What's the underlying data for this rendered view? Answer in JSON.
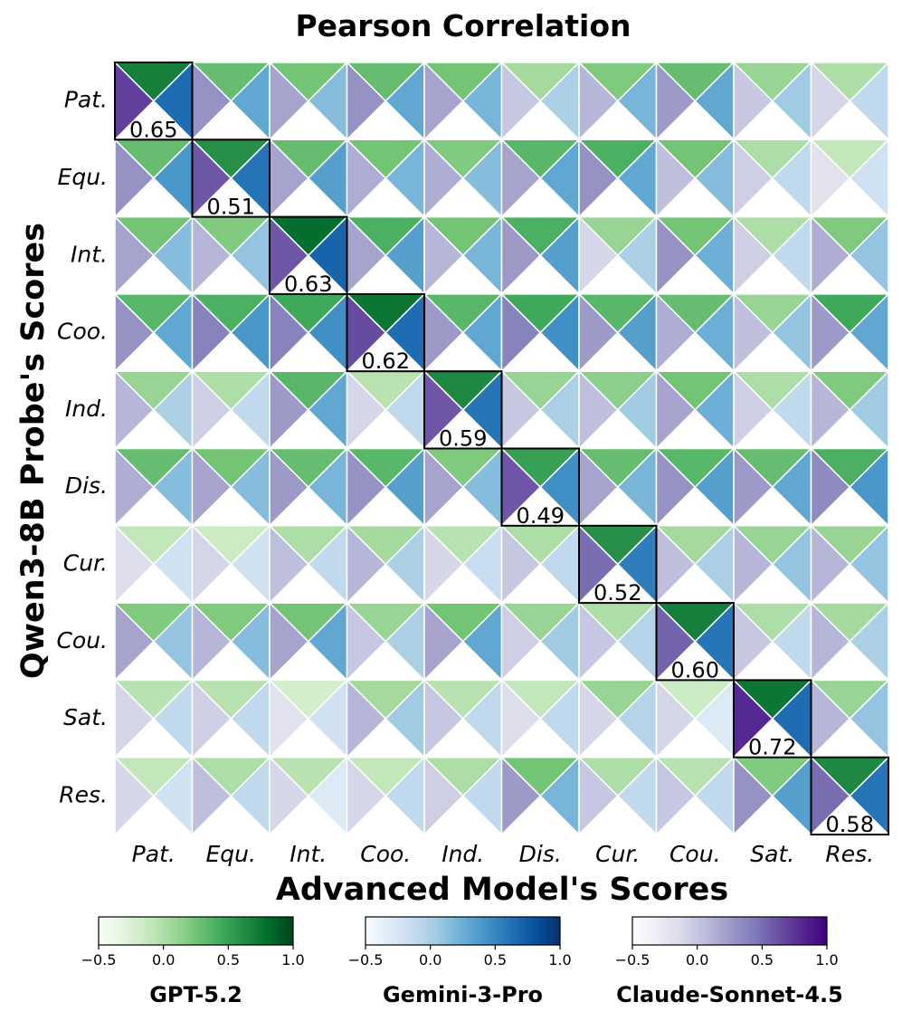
{
  "chart_data": {
    "type": "heatmap",
    "title": "Pearson Correlation",
    "xlabel": "Advanced Model's Scores",
    "ylabel": "Qwen3-8B Probe's Scores",
    "rows": [
      "Pat.",
      "Equ.",
      "Int.",
      "Coo.",
      "Ind.",
      "Dis.",
      "Cur.",
      "Cou.",
      "Sat.",
      "Res."
    ],
    "cols": [
      "Pat.",
      "Equ.",
      "Int.",
      "Coo.",
      "Ind.",
      "Dis.",
      "Cur.",
      "Cou.",
      "Sat.",
      "Res."
    ],
    "diagonal_labels": [
      "0.65",
      "0.51",
      "0.63",
      "0.62",
      "0.59",
      "0.49",
      "0.52",
      "0.60",
      "0.72",
      "0.58"
    ],
    "vmin": -0.5,
    "vmax": 1.0,
    "series": [
      {
        "name": "GPT-5.2",
        "colormap": "Greens",
        "position": "top",
        "values": [
          [
            0.7,
            0.3,
            0.25,
            0.3,
            0.25,
            0.05,
            0.2,
            0.3,
            0.1,
            0.0
          ],
          [
            0.3,
            0.6,
            0.3,
            0.25,
            0.2,
            0.35,
            0.4,
            0.25,
            0.0,
            -0.1
          ],
          [
            0.25,
            0.2,
            0.8,
            0.4,
            0.25,
            0.4,
            0.1,
            0.25,
            0.0,
            0.2
          ],
          [
            0.35,
            0.4,
            0.45,
            0.75,
            0.35,
            0.45,
            0.35,
            0.3,
            0.1,
            0.45
          ],
          [
            0.1,
            0.0,
            0.35,
            -0.05,
            0.65,
            0.1,
            0.15,
            0.25,
            0.0,
            0.2
          ],
          [
            0.3,
            0.25,
            0.3,
            0.35,
            0.2,
            0.5,
            0.3,
            0.35,
            0.3,
            0.4
          ],
          [
            -0.1,
            -0.15,
            0.0,
            0.05,
            -0.05,
            0.0,
            0.6,
            0.05,
            0.1,
            0.1
          ],
          [
            0.2,
            0.2,
            0.25,
            0.1,
            0.25,
            0.1,
            0.0,
            0.7,
            0.0,
            0.05
          ],
          [
            -0.05,
            -0.05,
            -0.2,
            0.05,
            -0.05,
            -0.1,
            0.1,
            -0.15,
            0.75,
            0.1
          ],
          [
            -0.1,
            0.0,
            -0.05,
            -0.1,
            0.0,
            0.25,
            0.0,
            -0.05,
            0.2,
            0.65
          ]
        ]
      },
      {
        "name": "Gemini-3-Pro",
        "colormap": "Blues",
        "position": "right",
        "values": [
          [
            0.65,
            0.3,
            0.15,
            0.3,
            0.2,
            0.0,
            0.2,
            0.3,
            0.05,
            -0.1
          ],
          [
            0.4,
            0.6,
            0.35,
            0.2,
            0.15,
            0.3,
            0.3,
            0.15,
            -0.1,
            -0.2
          ],
          [
            0.15,
            0.1,
            0.7,
            0.35,
            0.2,
            0.35,
            0.0,
            0.25,
            -0.1,
            0.1
          ],
          [
            0.3,
            0.4,
            0.45,
            0.65,
            0.3,
            0.45,
            0.35,
            0.25,
            0.1,
            0.3
          ],
          [
            0.0,
            -0.1,
            0.3,
            -0.1,
            0.6,
            0.0,
            0.05,
            0.25,
            -0.1,
            0.05
          ],
          [
            0.15,
            0.15,
            0.2,
            0.35,
            0.15,
            0.45,
            0.2,
            0.35,
            0.3,
            0.4
          ],
          [
            -0.2,
            -0.2,
            -0.1,
            0.0,
            -0.15,
            -0.1,
            0.55,
            0.0,
            0.1,
            0.1
          ],
          [
            0.1,
            0.15,
            0.3,
            0.0,
            0.3,
            0.05,
            -0.05,
            0.6,
            -0.1,
            0.0
          ],
          [
            -0.1,
            -0.1,
            -0.2,
            0.05,
            -0.1,
            -0.1,
            -0.05,
            -0.3,
            0.65,
            0.1
          ],
          [
            -0.2,
            -0.1,
            -0.3,
            -0.1,
            -0.1,
            0.2,
            -0.1,
            -0.1,
            0.35,
            0.6
          ]
        ]
      },
      {
        "name": "Claude-Sonnet-4.5",
        "colormap": "Purples",
        "position": "left",
        "values": [
          [
            0.7,
            0.3,
            0.2,
            0.3,
            0.2,
            0.0,
            0.1,
            0.25,
            0.0,
            -0.1
          ],
          [
            0.3,
            0.6,
            0.2,
            0.15,
            0.15,
            0.2,
            0.3,
            0.05,
            -0.05,
            -0.2
          ],
          [
            0.2,
            0.1,
            0.6,
            0.2,
            0.1,
            0.25,
            -0.1,
            0.3,
            -0.05,
            0.15
          ],
          [
            0.3,
            0.4,
            0.4,
            0.65,
            0.25,
            0.4,
            0.25,
            0.15,
            0.05,
            0.25
          ],
          [
            0.1,
            -0.05,
            0.25,
            -0.1,
            0.6,
            0.0,
            0.05,
            0.2,
            -0.05,
            0.1
          ],
          [
            0.15,
            0.2,
            0.25,
            0.3,
            0.2,
            0.6,
            0.2,
            0.3,
            0.25,
            0.35
          ],
          [
            -0.15,
            -0.1,
            0.05,
            0.1,
            -0.1,
            0.0,
            0.5,
            0.05,
            0.1,
            0.1
          ],
          [
            0.2,
            0.1,
            0.2,
            0.0,
            0.2,
            -0.05,
            0.0,
            0.55,
            0.0,
            0.1
          ],
          [
            -0.1,
            -0.05,
            -0.2,
            0.1,
            0.0,
            -0.15,
            -0.1,
            -0.1,
            0.8,
            0.1
          ],
          [
            -0.1,
            0.05,
            -0.1,
            -0.1,
            -0.05,
            0.25,
            0.0,
            0.0,
            0.3,
            0.5
          ]
        ]
      }
    ],
    "colorbars": [
      {
        "name": "GPT-5.2",
        "ticks": [
          "−0.5",
          "0.0",
          "0.5",
          "1.0"
        ]
      },
      {
        "name": "Gemini-3-Pro",
        "ticks": [
          "−0.5",
          "0.0",
          "0.5",
          "1.0"
        ]
      },
      {
        "name": "Claude-Sonnet-4.5",
        "ticks": [
          "−0.5",
          "0.0",
          "0.5",
          "1.0"
        ]
      }
    ]
  }
}
